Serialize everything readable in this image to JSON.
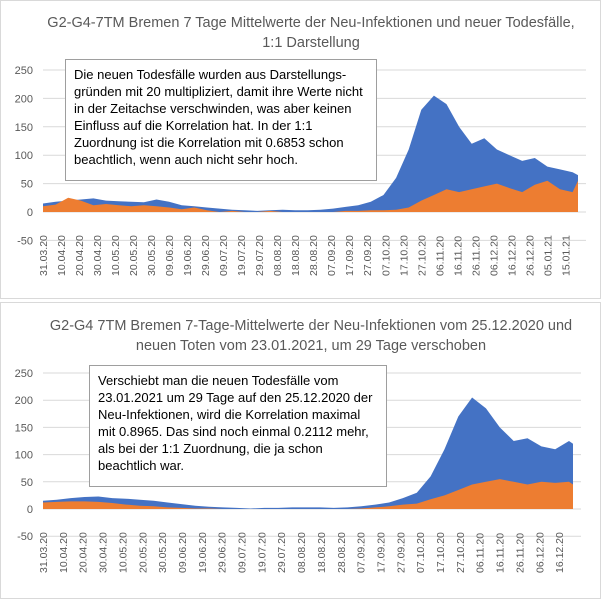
{
  "colors": {
    "infections": "#4472c4",
    "deaths": "#ed7d31",
    "grid": "#d9d9d9",
    "text": "#595959"
  },
  "chart_data": [
    {
      "type": "area",
      "title": "G2-G4-7TM Bremen 7 Tage Mittelwerte der Neu-Infektionen und neuer Todesfälle, 1:1 Darstellung",
      "annotation": "Die neuen Todesfälle wurden aus Darstellungs-gründen mit 20 multipliziert, damit ihre Werte nicht in der Zeitachse verschwinden, was aber keinen Einfluss auf die Korrelation hat. In der 1:1 Zuordnung ist die Korrelation mit 0.6853 schon beachtlich, wenn auch nicht sehr hoch.",
      "ylim": [
        -50,
        250
      ],
      "yticks": [
        -50,
        0,
        50,
        100,
        150,
        200,
        250
      ],
      "x_range": [
        "31.03.20",
        "22.01.21"
      ],
      "x_tick_labels": [
        "31.03.20",
        "10.04.20",
        "20.04.20",
        "30.04.20",
        "10.05.20",
        "20.05.20",
        "30.05.20",
        "09.06.20",
        "19.06.20",
        "29.06.20",
        "09.07.20",
        "19.07.20",
        "29.07.20",
        "08.08.20",
        "18.08.20",
        "28.08.20",
        "07.09.20",
        "17.09.20",
        "27.09.20",
        "07.10.20",
        "17.10.20",
        "27.10.20",
        "06.11.20",
        "16.11.20",
        "26.11.20",
        "06.12.20",
        "16.12.20",
        "26.12.20",
        "05.01.21",
        "15.01.21"
      ],
      "x_days": [
        0,
        7,
        14,
        21,
        28,
        35,
        42,
        49,
        56,
        63,
        70,
        77,
        84,
        91,
        98,
        105,
        112,
        119,
        126,
        133,
        140,
        147,
        154,
        161,
        168,
        175,
        182,
        189,
        196,
        203,
        210,
        217,
        224,
        231,
        238,
        245,
        252,
        259,
        266,
        273,
        280,
        287,
        294,
        297
      ],
      "series": [
        {
          "values": [
            15,
            18,
            20,
            22,
            24,
            20,
            19,
            18,
            17,
            22,
            18,
            12,
            10,
            8,
            6,
            4,
            3,
            2,
            3,
            4,
            3,
            3,
            4,
            6,
            9,
            12,
            18,
            30,
            60,
            110,
            180,
            205,
            190,
            150,
            120,
            130,
            110,
            100,
            90,
            95,
            80,
            75,
            70,
            65
          ]
        },
        {
          "values": [
            10,
            13,
            25,
            20,
            12,
            14,
            12,
            10,
            12,
            10,
            8,
            5,
            8,
            3,
            0,
            2,
            0,
            0,
            2,
            0,
            0,
            0,
            0,
            0,
            2,
            2,
            3,
            3,
            4,
            8,
            20,
            30,
            40,
            35,
            40,
            45,
            50,
            42,
            35,
            48,
            55,
            40,
            35,
            55
          ]
        }
      ]
    },
    {
      "type": "area",
      "title": "G2-G4 7TM Bremen 7-Tage-Mittelwerte der Neu-Infektionen vom 25.12.2020 und neuen Toten vom 23.01.2021, um 29 Tage verschoben",
      "annotation": "Verschiebt man die neuen Todesfälle vom 23.01.2021 um 29 Tage auf den 25.12.2020 der Neu-Infektionen, wird die Korrelation maximal mit 0.8965. Das sind noch einmal 0.2112 mehr, als bei der 1:1 Zuordnung, die ja schon beachtlich war.",
      "ylim": [
        -50,
        250
      ],
      "yticks": [
        -50,
        0,
        50,
        100,
        150,
        200,
        250
      ],
      "x_range": [
        "31.03.20",
        "25.12.20"
      ],
      "x_tick_labels": [
        "31.03.20",
        "10.04.20",
        "20.04.20",
        "30.04.20",
        "10.05.20",
        "20.05.20",
        "30.05.20",
        "09.06.20",
        "19.06.20",
        "29.06.20",
        "09.07.20",
        "19.07.20",
        "29.07.20",
        "08.08.20",
        "18.08.20",
        "28.08.20",
        "07.09.20",
        "17.09.20",
        "27.09.20",
        "07.10.20",
        "17.10.20",
        "27.10.20",
        "06.11.20",
        "16.11.20",
        "26.11.20",
        "06.12.20",
        "16.12.20"
      ],
      "x_days": [
        0,
        7,
        14,
        21,
        28,
        35,
        42,
        49,
        56,
        63,
        70,
        77,
        84,
        91,
        98,
        105,
        112,
        119,
        126,
        133,
        140,
        147,
        154,
        161,
        168,
        175,
        182,
        189,
        196,
        203,
        210,
        217,
        224,
        231,
        238,
        245,
        252,
        259,
        266,
        268
      ],
      "series": [
        {
          "values": [
            15,
            17,
            20,
            22,
            23,
            20,
            19,
            17,
            15,
            12,
            9,
            6,
            4,
            3,
            2,
            1,
            2,
            2,
            3,
            3,
            3,
            2,
            3,
            5,
            8,
            12,
            20,
            30,
            60,
            110,
            170,
            205,
            185,
            150,
            125,
            130,
            115,
            110,
            125,
            120
          ]
        },
        {
          "values": [
            12,
            13,
            14,
            14,
            13,
            11,
            8,
            6,
            5,
            3,
            2,
            1,
            1,
            0,
            0,
            0,
            0,
            0,
            0,
            0,
            0,
            0,
            0,
            1,
            3,
            5,
            8,
            10,
            18,
            25,
            35,
            45,
            50,
            55,
            50,
            45,
            50,
            48,
            50,
            45
          ]
        }
      ]
    }
  ]
}
